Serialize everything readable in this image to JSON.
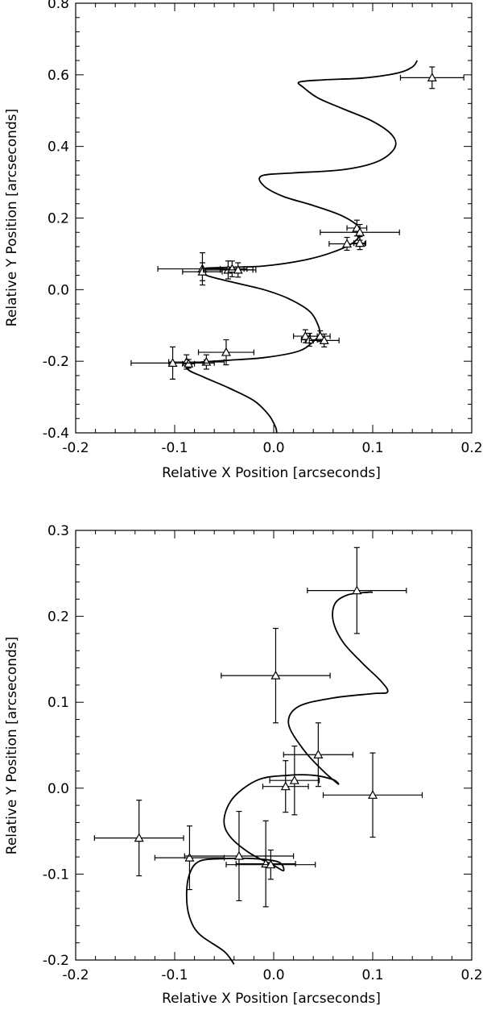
{
  "chart_data": [
    {
      "type": "scatter",
      "xlabel": "Relative X Position [arcseconds]",
      "ylabel": "Relative Y Position [arcseconds]",
      "xlim": [
        -0.2,
        0.2
      ],
      "ylim": [
        -0.4,
        0.8
      ],
      "x_ticks": [
        -0.2,
        -0.1,
        0.0,
        0.1,
        0.2
      ],
      "x_tick_labels": [
        "-0.2",
        "-0.1",
        "0.0",
        "0.1",
        "0.2"
      ],
      "y_ticks": [
        -0.4,
        -0.2,
        0.0,
        0.2,
        0.4,
        0.6,
        0.8
      ],
      "y_tick_labels": [
        "-0.4",
        "-0.2",
        "0.0",
        "0.2",
        "0.4",
        "0.6",
        "0.8"
      ],
      "marker": "triangle",
      "points": [
        {
          "x": 0.16,
          "y": 0.592,
          "xerr": 0.032,
          "yerr": 0.03
        },
        {
          "x": 0.084,
          "y": 0.172,
          "xerr": 0.01,
          "yerr": 0.022
        },
        {
          "x": 0.087,
          "y": 0.16,
          "xerr": 0.04,
          "yerr": 0.022
        },
        {
          "x": 0.074,
          "y": 0.128,
          "xerr": 0.018,
          "yerr": 0.018
        },
        {
          "x": 0.087,
          "y": 0.13,
          "xerr": 0.006,
          "yerr": 0.018
        },
        {
          "x": -0.072,
          "y": 0.058,
          "xerr": 0.045,
          "yerr": 0.045
        },
        {
          "x": -0.072,
          "y": 0.05,
          "xerr": 0.02,
          "yerr": 0.025
        },
        {
          "x": -0.046,
          "y": 0.055,
          "xerr": 0.025,
          "yerr": 0.025
        },
        {
          "x": -0.042,
          "y": 0.058,
          "xerr": 0.012,
          "yerr": 0.022
        },
        {
          "x": -0.036,
          "y": 0.055,
          "xerr": 0.018,
          "yerr": 0.02
        },
        {
          "x": 0.032,
          "y": -0.13,
          "xerr": 0.012,
          "yerr": 0.018
        },
        {
          "x": 0.036,
          "y": -0.14,
          "xerr": 0.008,
          "yerr": 0.018
        },
        {
          "x": 0.047,
          "y": -0.13,
          "xerr": 0.01,
          "yerr": 0.015
        },
        {
          "x": 0.051,
          "y": -0.142,
          "xerr": 0.015,
          "yerr": 0.018
        },
        {
          "x": -0.048,
          "y": -0.175,
          "xerr": 0.028,
          "yerr": 0.035
        },
        {
          "x": -0.068,
          "y": -0.202,
          "xerr": 0.018,
          "yerr": 0.02
        },
        {
          "x": -0.088,
          "y": -0.202,
          "xerr": 0.018,
          "yerr": 0.02
        },
        {
          "x": -0.086,
          "y": -0.207,
          "xerr": 0.006,
          "yerr": 0.012
        },
        {
          "x": -0.102,
          "y": -0.205,
          "xerr": 0.042,
          "yerr": 0.045
        }
      ],
      "orbit_curve": [
        [
          0.003,
          -0.4
        ],
        [
          0.002,
          -0.385
        ],
        [
          -0.005,
          -0.35
        ],
        [
          -0.02,
          -0.31
        ],
        [
          -0.045,
          -0.275
        ],
        [
          -0.07,
          -0.245
        ],
        [
          -0.087,
          -0.222
        ],
        [
          -0.08,
          -0.205
        ],
        [
          -0.05,
          -0.198
        ],
        [
          -0.01,
          -0.19
        ],
        [
          0.025,
          -0.172
        ],
        [
          0.04,
          -0.145
        ],
        [
          0.046,
          -0.125
        ],
        [
          0.045,
          -0.1
        ],
        [
          0.036,
          -0.06
        ],
        [
          0.015,
          -0.025
        ],
        [
          -0.01,
          0.0
        ],
        [
          -0.04,
          0.02
        ],
        [
          -0.068,
          0.04
        ],
        [
          -0.072,
          0.058
        ],
        [
          -0.05,
          0.062
        ],
        [
          -0.01,
          0.066
        ],
        [
          0.03,
          0.082
        ],
        [
          0.06,
          0.105
        ],
        [
          0.082,
          0.135
        ],
        [
          0.087,
          0.17
        ],
        [
          0.07,
          0.205
        ],
        [
          0.04,
          0.235
        ],
        [
          0.01,
          0.26
        ],
        [
          -0.01,
          0.29
        ],
        [
          -0.012,
          0.318
        ],
        [
          0.02,
          0.326
        ],
        [
          0.07,
          0.335
        ],
        [
          0.105,
          0.358
        ],
        [
          0.122,
          0.395
        ],
        [
          0.12,
          0.43
        ],
        [
          0.1,
          0.47
        ],
        [
          0.07,
          0.505
        ],
        [
          0.045,
          0.535
        ],
        [
          0.03,
          0.565
        ],
        [
          0.026,
          0.58
        ],
        [
          0.05,
          0.586
        ],
        [
          0.09,
          0.591
        ],
        [
          0.125,
          0.605
        ],
        [
          0.14,
          0.622
        ],
        [
          0.145,
          0.64
        ]
      ]
    },
    {
      "type": "scatter",
      "xlabel": "Relative X Position [arcseconds]",
      "ylabel": "Relative Y Position [arcseconds]",
      "xlim": [
        -0.2,
        0.2
      ],
      "ylim": [
        -0.2,
        0.3
      ],
      "x_ticks": [
        -0.2,
        -0.1,
        0.0,
        0.1,
        0.2
      ],
      "x_tick_labels": [
        "-0.2",
        "-0.1",
        "0.0",
        "0.1",
        "0.2"
      ],
      "y_ticks": [
        -0.2,
        -0.1,
        0.0,
        0.1,
        0.2,
        0.3
      ],
      "y_tick_labels": [
        "-0.2",
        "-0.1",
        "0.0",
        "0.1",
        "0.2",
        "0.3"
      ],
      "marker": "triangle",
      "points": [
        {
          "x": 0.084,
          "y": 0.23,
          "xerr": 0.05,
          "yerr": 0.05
        },
        {
          "x": 0.002,
          "y": 0.131,
          "xerr": 0.055,
          "yerr": 0.055
        },
        {
          "x": 0.045,
          "y": 0.039,
          "xerr": 0.035,
          "yerr": 0.037
        },
        {
          "x": 0.021,
          "y": 0.009,
          "xerr": 0.025,
          "yerr": 0.04
        },
        {
          "x": 0.012,
          "y": 0.002,
          "xerr": 0.023,
          "yerr": 0.03
        },
        {
          "x": 0.1,
          "y": -0.008,
          "xerr": 0.05,
          "yerr": 0.049
        },
        {
          "x": -0.136,
          "y": -0.058,
          "xerr": 0.045,
          "yerr": 0.044
        },
        {
          "x": -0.085,
          "y": -0.081,
          "xerr": 0.035,
          "yerr": 0.037
        },
        {
          "x": -0.035,
          "y": -0.079,
          "xerr": 0.055,
          "yerr": 0.052
        },
        {
          "x": -0.008,
          "y": -0.088,
          "xerr": 0.03,
          "yerr": 0.05
        },
        {
          "x": -0.003,
          "y": -0.089,
          "xerr": 0.045,
          "yerr": 0.017
        }
      ],
      "orbit_curve": [
        [
          -0.04,
          -0.205
        ],
        [
          -0.05,
          -0.19
        ],
        [
          -0.075,
          -0.17
        ],
        [
          -0.085,
          -0.15
        ],
        [
          -0.088,
          -0.125
        ],
        [
          -0.085,
          -0.1
        ],
        [
          -0.075,
          -0.085
        ],
        [
          -0.05,
          -0.082
        ],
        [
          -0.02,
          -0.082
        ],
        [
          0.005,
          -0.086
        ],
        [
          0.01,
          -0.096
        ],
        [
          0.0,
          -0.09
        ],
        [
          -0.025,
          -0.075
        ],
        [
          -0.045,
          -0.055
        ],
        [
          -0.05,
          -0.035
        ],
        [
          -0.04,
          -0.01
        ],
        [
          -0.015,
          0.01
        ],
        [
          0.015,
          0.015
        ],
        [
          0.04,
          0.015
        ],
        [
          0.06,
          0.01
        ],
        [
          0.065,
          0.005
        ],
        [
          0.05,
          0.02
        ],
        [
          0.03,
          0.045
        ],
        [
          0.015,
          0.075
        ],
        [
          0.025,
          0.095
        ],
        [
          0.06,
          0.105
        ],
        [
          0.1,
          0.11
        ],
        [
          0.115,
          0.112
        ],
        [
          0.108,
          0.125
        ],
        [
          0.09,
          0.145
        ],
        [
          0.07,
          0.17
        ],
        [
          0.06,
          0.195
        ],
        [
          0.062,
          0.215
        ],
        [
          0.075,
          0.225
        ],
        [
          0.095,
          0.228
        ],
        [
          0.1,
          0.228
        ]
      ]
    }
  ]
}
